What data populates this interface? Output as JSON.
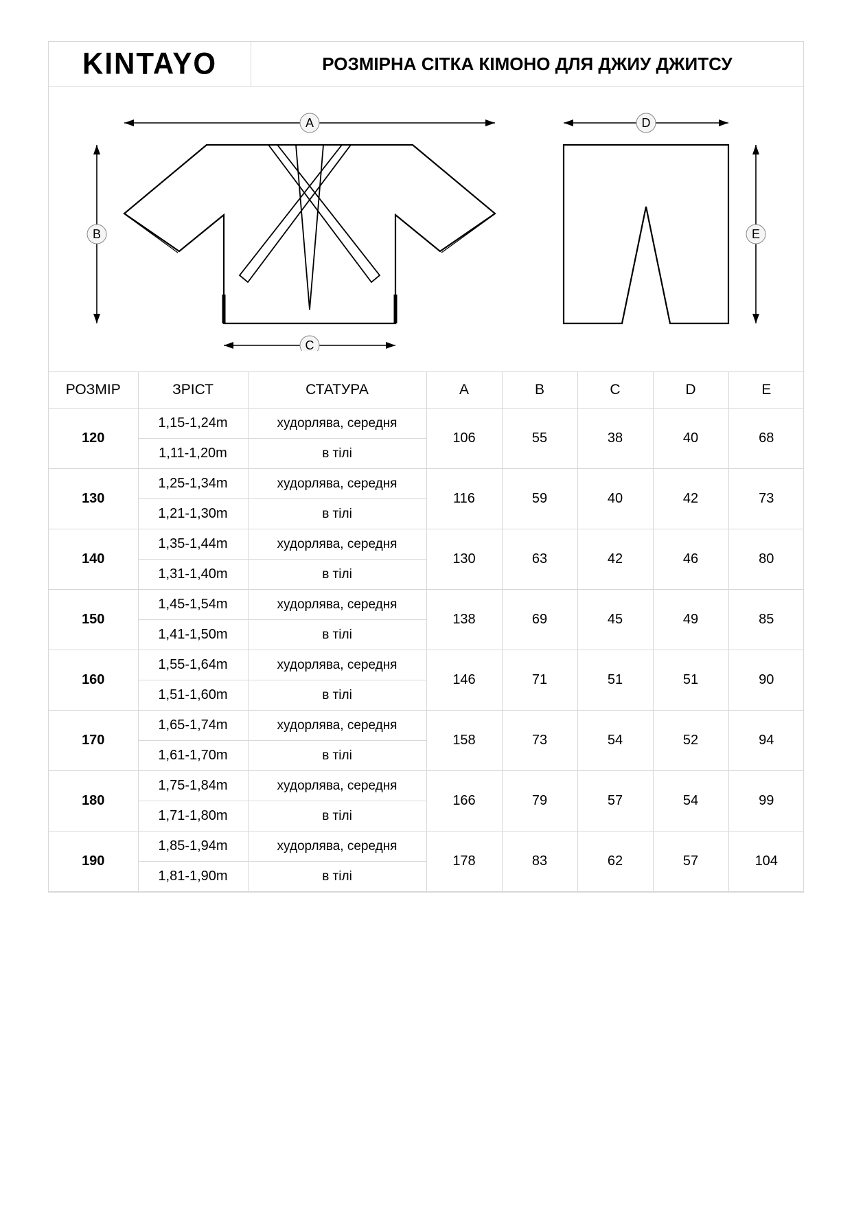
{
  "brand": "KINTAYO",
  "title": "РОЗМІРНА СІТКА КІМОНО ДЛЯ ДЖИУ ДЖИТСУ",
  "diagram": {
    "labels": {
      "a": "A",
      "b": "B",
      "c": "C",
      "d": "D",
      "e": "E"
    },
    "stroke": "#000000",
    "background": "#ffffff",
    "marker_fill": "#f0f0f0"
  },
  "table": {
    "headers": {
      "size": "РОЗМІР",
      "height": "ЗРІСТ",
      "build": "СТАТУРА",
      "a": "A",
      "b": "B",
      "c": "C",
      "d": "D",
      "e": "E"
    },
    "build_slim": "худорлява, середня",
    "build_stout": "в тілі",
    "rows": [
      {
        "size": "120",
        "height_slim": "1,15-1,24m",
        "height_stout": "1,11-1,20m",
        "a": "106",
        "b": "55",
        "c": "38",
        "d": "40",
        "e": "68"
      },
      {
        "size": "130",
        "height_slim": "1,25-1,34m",
        "height_stout": "1,21-1,30m",
        "a": "116",
        "b": "59",
        "c": "40",
        "d": "42",
        "e": "73"
      },
      {
        "size": "140",
        "height_slim": "1,35-1,44m",
        "height_stout": "1,31-1,40m",
        "a": "130",
        "b": "63",
        "c": "42",
        "d": "46",
        "e": "80"
      },
      {
        "size": "150",
        "height_slim": "1,45-1,54m",
        "height_stout": "1,41-1,50m",
        "a": "138",
        "b": "69",
        "c": "45",
        "d": "49",
        "e": "85"
      },
      {
        "size": "160",
        "height_slim": "1,55-1,64m",
        "height_stout": "1,51-1,60m",
        "a": "146",
        "b": "71",
        "c": "51",
        "d": "51",
        "e": "90"
      },
      {
        "size": "170",
        "height_slim": "1,65-1,74m",
        "height_stout": "1,61-1,70m",
        "a": "158",
        "b": "73",
        "c": "54",
        "d": "52",
        "e": "94"
      },
      {
        "size": "180",
        "height_slim": "1,75-1,84m",
        "height_stout": "1,71-1,80m",
        "a": "166",
        "b": "79",
        "c": "57",
        "d": "54",
        "e": "99"
      },
      {
        "size": "190",
        "height_slim": "1,85-1,94m",
        "height_stout": "1,81-1,90m",
        "a": "178",
        "b": "83",
        "c": "62",
        "d": "57",
        "e": "104"
      }
    ]
  }
}
